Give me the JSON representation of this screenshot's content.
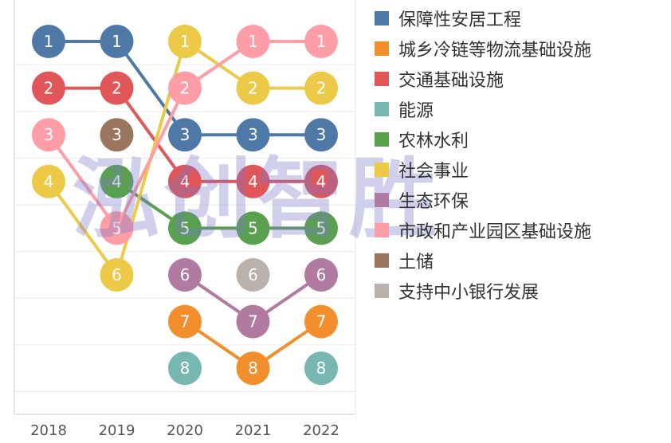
{
  "chart_data": {
    "type": "bump",
    "x": [
      "2018",
      "2019",
      "2020",
      "2021",
      "2022"
    ],
    "ylim": [
      1,
      8
    ],
    "grid": true,
    "legend_placement": "right",
    "series": [
      {
        "name": "保障性安居工程",
        "color": "#4e79a7",
        "ranks": [
          1,
          1,
          3,
          3,
          3
        ]
      },
      {
        "name": "城乡冷链等物流基础设施",
        "color": "#f28e2b",
        "ranks": [
          null,
          null,
          7,
          8,
          7
        ]
      },
      {
        "name": "交通基础设施",
        "color": "#e15759",
        "ranks": [
          2,
          2,
          4,
          4,
          4
        ]
      },
      {
        "name": "能源",
        "color": "#76b7b2",
        "ranks": [
          null,
          null,
          8,
          null,
          8
        ]
      },
      {
        "name": "农林水利",
        "color": "#59a14f",
        "ranks": [
          null,
          4,
          5,
          5,
          5
        ]
      },
      {
        "name": "社会事业",
        "color": "#edc948",
        "ranks": [
          4,
          6,
          1,
          2,
          2
        ]
      },
      {
        "name": "生态环保",
        "color": "#b07aa1",
        "ranks": [
          null,
          null,
          6,
          7,
          6
        ]
      },
      {
        "name": "市政和产业园区基础设施",
        "color": "#ff9da7",
        "ranks": [
          3,
          5,
          2,
          1,
          1
        ]
      },
      {
        "name": "土储",
        "color": "#9c755f",
        "ranks": [
          null,
          3,
          null,
          null,
          null
        ]
      },
      {
        "name": "支持中小银行发展",
        "color": "#bab0ac",
        "ranks": [
          null,
          null,
          null,
          6,
          null
        ]
      }
    ]
  },
  "watermark": "泓创智胜"
}
